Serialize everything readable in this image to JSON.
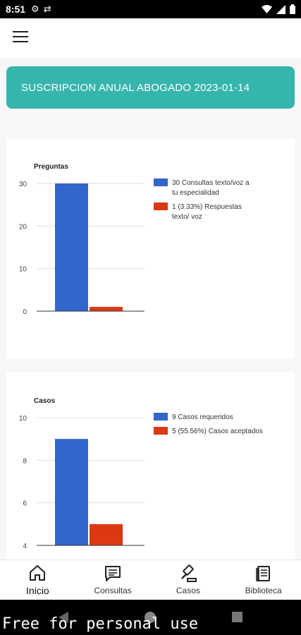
{
  "status_bar": {
    "time": "8:51"
  },
  "banner": {
    "text": "SUSCRIPCION ANUAL ABOGADO 2023-01-14"
  },
  "chart_data": [
    {
      "type": "bar",
      "title": "Preguntas",
      "ylim": [
        0,
        30
      ],
      "yticks": [
        0,
        10,
        20,
        30
      ],
      "series": [
        {
          "name": "30 Consultas texto/voz a tu especialidad",
          "values": [
            30
          ],
          "color": "#3366cc"
        },
        {
          "name": "1 (3.33%) Respuestas texto/ voz",
          "values": [
            1
          ],
          "color": "#dc3912"
        }
      ],
      "legend": "right"
    },
    {
      "type": "bar",
      "title": "Casos",
      "ylim": [
        4,
        10
      ],
      "yticks": [
        4,
        6,
        8,
        10
      ],
      "series": [
        {
          "name": "9 Casos requeridos",
          "values": [
            9
          ],
          "color": "#3366cc"
        },
        {
          "name": "5 (55.56%) Casos aceptados",
          "values": [
            5
          ],
          "color": "#dc3912"
        }
      ],
      "legend": "right"
    }
  ],
  "bottom_nav": {
    "items": [
      {
        "label": "Inicio",
        "icon": "home-icon"
      },
      {
        "label": "Consultas",
        "icon": "chat-icon"
      },
      {
        "label": "Casos",
        "icon": "gavel-icon"
      },
      {
        "label": "Biblioteca",
        "icon": "book-icon"
      }
    ]
  },
  "watermark": "Free for personal use"
}
